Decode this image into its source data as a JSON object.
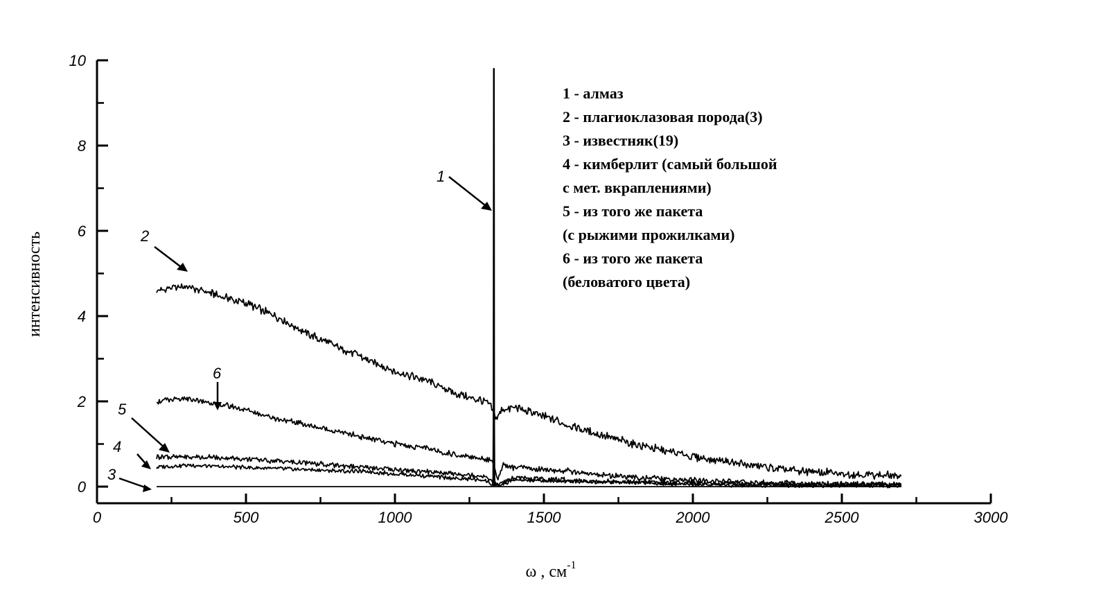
{
  "chart_data": {
    "type": "line",
    "xlabel": "ω , см",
    "xlabel_sup": "-1",
    "ylabel": "интенсивность",
    "xlim": [
      0,
      3000
    ],
    "ylim": [
      0,
      10
    ],
    "x_ticks": [
      0,
      500,
      1000,
      1500,
      2000,
      2500,
      3000
    ],
    "y_ticks": [
      0,
      2,
      4,
      6,
      8,
      10
    ],
    "grid": false,
    "legend_position": "top-right",
    "legend": [
      "1 - алмаз",
      "2 - плагиоклазовая порода(3)",
      "3 - известняк(19)",
      "4 - кимберлит (самый большой",
      "с мет. вкраплениями)",
      "5 - из того же пакета",
      "(с рыжими прожилками)",
      "6 - из того же пакета",
      "(беловатого цвета)"
    ],
    "series": [
      {
        "name": "1",
        "x": [
          1328,
          1330,
          1331,
          1332,
          1333,
          1334,
          1335
        ],
        "y": [
          0.02,
          0.2,
          1.5,
          9.8,
          1.5,
          0.2,
          0.02
        ]
      },
      {
        "name": "2",
        "x": [
          200,
          300,
          400,
          500,
          600,
          700,
          800,
          900,
          1000,
          1100,
          1200,
          1300,
          1320,
          1340,
          1360,
          1400,
          1500,
          1600,
          1700,
          1800,
          1900,
          2000,
          2100,
          2200,
          2300,
          2400,
          2500,
          2600,
          2700
        ],
        "y": [
          4.6,
          4.7,
          4.5,
          4.3,
          4.0,
          3.6,
          3.3,
          3.0,
          2.7,
          2.5,
          2.2,
          2.0,
          1.9,
          1.6,
          1.8,
          1.85,
          1.65,
          1.4,
          1.2,
          1.0,
          0.85,
          0.7,
          0.6,
          0.5,
          0.4,
          0.35,
          0.3,
          0.27,
          0.25
        ]
      },
      {
        "name": "3",
        "x": [
          200,
          2700
        ],
        "y": [
          0,
          0
        ]
      },
      {
        "name": "4",
        "x": [
          200,
          300,
          500,
          700,
          900,
          1100,
          1300,
          1340,
          1400,
          1600,
          1800,
          2000,
          2200,
          2400,
          2600,
          2700
        ],
        "y": [
          0.45,
          0.5,
          0.45,
          0.4,
          0.35,
          0.25,
          0.15,
          0.0,
          0.15,
          0.12,
          0.1,
          0.05,
          0.03,
          0.03,
          0.02,
          0.02
        ]
      },
      {
        "name": "5",
        "x": [
          200,
          300,
          400,
          500,
          600,
          700,
          800,
          900,
          1000,
          1100,
          1200,
          1300,
          1340,
          1400,
          1600,
          1800,
          2000,
          2200,
          2400,
          2600,
          2700
        ],
        "y": [
          0.7,
          0.7,
          0.68,
          0.65,
          0.6,
          0.55,
          0.5,
          0.45,
          0.4,
          0.35,
          0.3,
          0.25,
          0.05,
          0.2,
          0.15,
          0.1,
          0.08,
          0.06,
          0.05,
          0.05,
          0.05
        ]
      },
      {
        "name": "6",
        "x": [
          200,
          300,
          400,
          500,
          600,
          700,
          800,
          900,
          1000,
          1100,
          1200,
          1300,
          1330,
          1345,
          1360,
          1400,
          1500,
          1600,
          1700,
          1800,
          1900,
          2000,
          2100,
          2200,
          2300,
          2400,
          2500,
          2600,
          2700
        ],
        "y": [
          2.0,
          2.05,
          1.95,
          1.8,
          1.6,
          1.45,
          1.3,
          1.15,
          1.0,
          0.9,
          0.75,
          0.65,
          0.6,
          0.1,
          0.5,
          0.45,
          0.4,
          0.35,
          0.28,
          0.22,
          0.18,
          0.15,
          0.12,
          0.1,
          0.08,
          0.06,
          0.05,
          0.05,
          0.05
        ]
      }
    ],
    "annotations": [
      "1",
      "2",
      "3",
      "4",
      "5",
      "6"
    ]
  }
}
